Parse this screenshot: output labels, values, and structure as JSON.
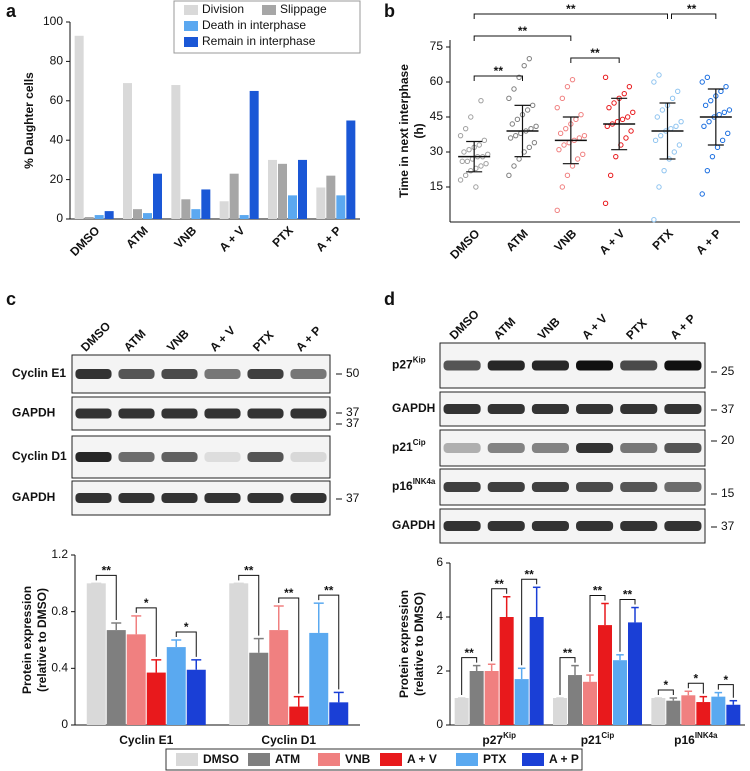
{
  "panels": [
    "a",
    "b",
    "c",
    "d"
  ],
  "blots": [
    {
      "lanes": [
        "DMSO",
        "ATM",
        "VNB",
        "A + V",
        "PTX",
        "A + P"
      ],
      "rows": [
        {
          "label": "Cyclin E1",
          "marker": 50
        },
        {
          "label": "GAPDH",
          "marker": 37
        },
        {
          "label": "Cyclin D1",
          "marker": 37
        },
        {
          "label": "GAPDH",
          "marker": 37
        }
      ]
    },
    {
      "lanes": [
        "DMSO",
        "ATM",
        "VNB",
        "A + V",
        "PTX",
        "A + P"
      ],
      "rows": [
        {
          "label": {
            "base": "p27",
            "sup": "Kip"
          },
          "marker": 25
        },
        {
          "label": "GAPDH",
          "marker": 37
        },
        {
          "label": {
            "base": "p21",
            "sup": "Cip"
          },
          "marker": 20
        },
        {
          "label": {
            "base": "p16",
            "sup": "INK4a"
          },
          "marker": 15
        },
        {
          "label": "GAPDH",
          "marker": 37
        }
      ]
    }
  ],
  "chart_data": [
    {
      "type": "bar",
      "ylabel": "% Daughter cells",
      "categories": [
        "DMSO",
        "ATM",
        "VNB",
        "A + V",
        "PTX",
        "A + P"
      ],
      "series": [
        {
          "name": "Division",
          "color": "#d9d9d9",
          "values": [
            93,
            69,
            68,
            9,
            30,
            16
          ]
        },
        {
          "name": "Slippage",
          "color": "#a6a6a6",
          "values": [
            1,
            5,
            10,
            23,
            28,
            22
          ]
        },
        {
          "name": "Death in interphase",
          "color": "#5ba8f0",
          "values": [
            2,
            3,
            5,
            2,
            12,
            12
          ]
        },
        {
          "name": "Remain in interphase",
          "color": "#1a57d6",
          "values": [
            4,
            23,
            15,
            65,
            30,
            50
          ]
        }
      ],
      "ylim": [
        0,
        100
      ],
      "yticks": [
        0,
        20,
        40,
        60,
        80,
        100
      ],
      "legend": "top-right"
    },
    {
      "type": "strip",
      "ylabel": [
        "Time in next interphase",
        "(h)"
      ],
      "categories": [
        "DMSO",
        "ATM",
        "VNB",
        "A + V",
        "PTX",
        "A + P"
      ],
      "groups": [
        {
          "color": "#a0a0a0",
          "mean": 28,
          "sd": 6.5,
          "values": [
            18,
            20,
            22,
            23,
            24,
            25,
            26,
            26,
            27,
            28,
            28,
            29,
            30,
            31,
            32,
            33,
            35,
            37,
            40,
            45,
            15,
            52
          ]
        },
        {
          "color": "#7f7f7f",
          "mean": 39,
          "sd": 11,
          "values": [
            20,
            24,
            27,
            30,
            32,
            34,
            36,
            37,
            38,
            39,
            40,
            41,
            42,
            44,
            46,
            48,
            50,
            53,
            57,
            62,
            67,
            70
          ]
        },
        {
          "color": "#f08080",
          "mean": 35,
          "sd": 10,
          "values": [
            5,
            15,
            20,
            24,
            27,
            29,
            31,
            33,
            34,
            35,
            36,
            37,
            38,
            40,
            42,
            44,
            46,
            49,
            53,
            58,
            61
          ]
        },
        {
          "color": "#e8191c",
          "mean": 42,
          "sd": 11,
          "values": [
            8,
            20,
            28,
            33,
            36,
            39,
            41,
            42,
            43,
            44,
            45,
            47,
            49,
            51,
            53,
            55,
            58,
            62
          ]
        },
        {
          "color": "#8fc4f0",
          "mean": 39,
          "sd": 12,
          "values": [
            1,
            15,
            22,
            27,
            30,
            33,
            35,
            37,
            39,
            40,
            41,
            43,
            45,
            48,
            50,
            53,
            56,
            60,
            63
          ]
        },
        {
          "color": "#1a6ee0",
          "mean": 45,
          "sd": 12,
          "values": [
            12,
            22,
            28,
            32,
            35,
            38,
            41,
            43,
            45,
            46,
            47,
            48,
            50,
            52,
            54,
            56,
            58,
            60,
            62
          ]
        }
      ],
      "ylim": [
        0,
        78
      ],
      "yticks": [
        15,
        30,
        45,
        60,
        75
      ],
      "annotations": [
        {
          "label": "**",
          "from": "DMSO",
          "to": "PTX"
        },
        {
          "label": "**",
          "from": "PTX",
          "to": "A + P"
        },
        {
          "label": "**",
          "from": "DMSO",
          "to": "VNB"
        },
        {
          "label": "**",
          "from": "VNB",
          "to": "A + V"
        },
        {
          "label": "**",
          "from": "DMSO",
          "to": "ATM"
        }
      ]
    },
    {
      "type": "bar",
      "ylabel": [
        "Protein expression",
        "(relative to DMSO)"
      ],
      "categories": [
        "Cyclin E1",
        "Cyclin D1"
      ],
      "series": [
        {
          "name": "DMSO",
          "color": "#d9d9d9",
          "values": [
            1.0,
            1.0
          ],
          "errors": [
            0,
            0
          ]
        },
        {
          "name": "ATM",
          "color": "#7f7f7f",
          "values": [
            0.67,
            0.51
          ],
          "errors": [
            0.05,
            0.1
          ]
        },
        {
          "name": "VNB",
          "color": "#f08080",
          "values": [
            0.64,
            0.67
          ],
          "errors": [
            0.13,
            0.17
          ]
        },
        {
          "name": "A + V",
          "color": "#e8191c",
          "values": [
            0.37,
            0.13
          ],
          "errors": [
            0.09,
            0.07
          ]
        },
        {
          "name": "PTX",
          "color": "#5aa9f0",
          "values": [
            0.55,
            0.65
          ],
          "errors": [
            0.05,
            0.21
          ]
        },
        {
          "name": "A + P",
          "color": "#1a3fd6",
          "values": [
            0.39,
            0.16
          ],
          "errors": [
            0.07,
            0.07
          ]
        }
      ],
      "ylim": [
        0,
        1.2
      ],
      "yticks": [
        0,
        0.4,
        0.8,
        1.2
      ],
      "legend": "bottom",
      "annotations": [
        {
          "label": "**",
          "category": "Cyclin E1",
          "from": "DMSO",
          "to": "ATM"
        },
        {
          "label": "*",
          "category": "Cyclin E1",
          "from": "VNB",
          "to": "A + V"
        },
        {
          "label": "*",
          "category": "Cyclin E1",
          "from": "PTX",
          "to": "A + P"
        },
        {
          "label": "**",
          "category": "Cyclin D1",
          "from": "DMSO",
          "to": "ATM"
        },
        {
          "label": "**",
          "category": "Cyclin D1",
          "from": "VNB",
          "to": "A + V"
        },
        {
          "label": "**",
          "category": "Cyclin D1",
          "from": "PTX",
          "to": "A + P"
        }
      ]
    },
    {
      "type": "bar",
      "ylabel": [
        "Protein expression",
        "(relative to DMSO)"
      ],
      "categories": [
        {
          "base": "p27",
          "sup": "Kip"
        },
        {
          "base": "p21",
          "sup": "Cip"
        },
        {
          "base": "p16",
          "sup": "INK4a"
        }
      ],
      "series": [
        {
          "name": "DMSO",
          "color": "#d9d9d9",
          "values": [
            1.0,
            1.0,
            1.0
          ],
          "errors": [
            0,
            0,
            0
          ]
        },
        {
          "name": "ATM",
          "color": "#7f7f7f",
          "values": [
            2.0,
            1.85,
            0.9
          ],
          "errors": [
            0.2,
            0.35,
            0.1
          ]
        },
        {
          "name": "VNB",
          "color": "#f08080",
          "values": [
            2.0,
            1.6,
            1.1
          ],
          "errors": [
            0.25,
            0.25,
            0.15
          ]
        },
        {
          "name": "A + V",
          "color": "#e8191c",
          "values": [
            4.0,
            3.7,
            0.85
          ],
          "errors": [
            0.75,
            0.8,
            0.2
          ]
        },
        {
          "name": "PTX",
          "color": "#5aa9f0",
          "values": [
            1.7,
            2.4,
            1.05
          ],
          "errors": [
            0.4,
            0.2,
            0.15
          ]
        },
        {
          "name": "A + P",
          "color": "#1a3fd6",
          "values": [
            4.0,
            3.8,
            0.75
          ],
          "errors": [
            1.1,
            0.55,
            0.15
          ]
        }
      ],
      "ylim": [
        0,
        6
      ],
      "yticks": [
        0,
        2,
        4,
        6
      ],
      "annotations": [
        {
          "label": "**",
          "category": 0,
          "from": "DMSO",
          "to": "ATM"
        },
        {
          "label": "**",
          "category": 0,
          "from": "VNB",
          "to": "A + V"
        },
        {
          "label": "**",
          "category": 0,
          "from": "PTX",
          "to": "A + P"
        },
        {
          "label": "**",
          "category": 1,
          "from": "DMSO",
          "to": "ATM"
        },
        {
          "label": "**",
          "category": 1,
          "from": "VNB",
          "to": "A + V"
        },
        {
          "label": "**",
          "category": 1,
          "from": "PTX",
          "to": "A + P"
        },
        {
          "label": "*",
          "category": 2,
          "from": "DMSO",
          "to": "ATM"
        },
        {
          "label": "*",
          "category": 2,
          "from": "VNB",
          "to": "A + V"
        },
        {
          "label": "*",
          "category": 2,
          "from": "PTX",
          "to": "A + P"
        }
      ]
    }
  ]
}
